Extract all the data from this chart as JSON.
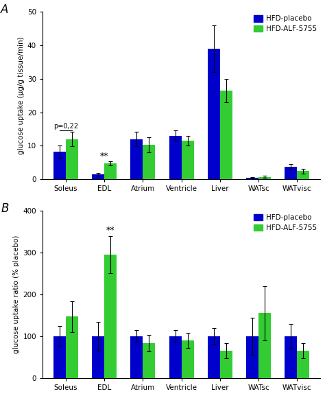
{
  "categories": [
    "Soleus",
    "EDL",
    "Atrium",
    "Ventricle",
    "Liver",
    "WATsc",
    "WATvisc"
  ],
  "panel_A": {
    "blue_values": [
      8.2,
      1.4,
      12.0,
      13.0,
      39.0,
      0.5,
      3.8
    ],
    "green_values": [
      12.0,
      4.8,
      10.3,
      11.5,
      26.5,
      0.7,
      2.4
    ],
    "blue_errors": [
      1.8,
      0.4,
      2.2,
      1.5,
      7.0,
      0.2,
      0.8
    ],
    "green_errors": [
      2.2,
      0.6,
      2.2,
      1.5,
      3.5,
      0.3,
      0.8
    ],
    "ylabel": "glucose uptake (µg/g tissue/min)",
    "ylim": [
      0,
      50
    ],
    "yticks": [
      0,
      10,
      20,
      30,
      40,
      50
    ],
    "panel_label": "A",
    "annotation_p": "p=0,22",
    "annotation_star": "**",
    "annotation_star_idx": 1
  },
  "panel_B": {
    "blue_values": [
      100,
      100,
      100,
      100,
      100,
      100,
      100
    ],
    "green_values": [
      147,
      295,
      84,
      90,
      66,
      155,
      66
    ],
    "blue_errors": [
      25,
      35,
      15,
      15,
      20,
      45,
      30
    ],
    "green_errors": [
      37,
      45,
      20,
      18,
      18,
      65,
      18
    ],
    "ylabel": "glucose uptake ratio (% placebo)",
    "ylim": [
      0,
      400
    ],
    "yticks": [
      0,
      100,
      200,
      300,
      400
    ],
    "panel_label": "B",
    "annotation_star": "**",
    "annotation_star_idx": 1
  },
  "blue_color": "#0000cc",
  "green_color": "#33cc33",
  "legend_labels": [
    "HFD-placebo",
    "HFD-ALF-5755"
  ],
  "bar_width": 0.32,
  "figsize": [
    4.74,
    5.77
  ],
  "dpi": 100
}
